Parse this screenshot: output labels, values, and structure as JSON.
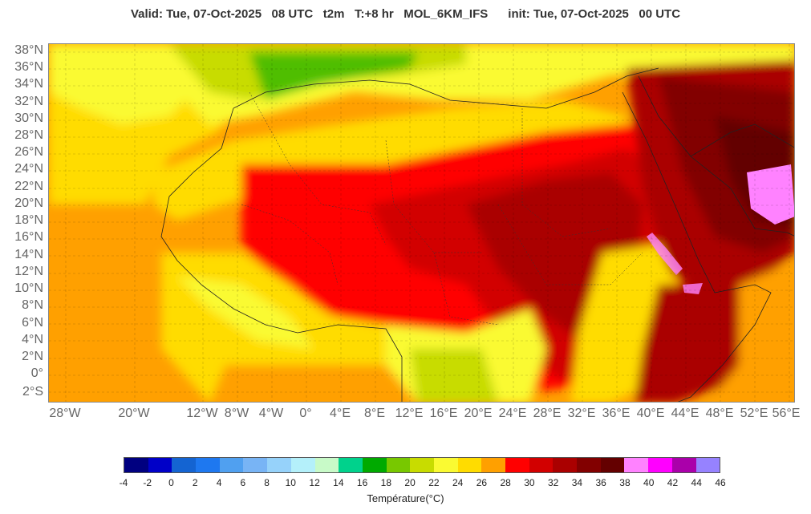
{
  "header": {
    "valid": "Valid: Tue, 07-Oct-2025   08 UTC",
    "field": "t2m",
    "step": "T:+8 hr",
    "model": "MOL_6KM_IFS",
    "init": "init: Tue, 07-Oct-2025   00 UTC"
  },
  "map": {
    "lat_labels": [
      "38°N",
      "36°N",
      "34°N",
      "32°N",
      "30°N",
      "28°N",
      "26°N",
      "24°N",
      "22°N",
      "20°N",
      "18°N",
      "16°N",
      "14°N",
      "12°N",
      "10°N",
      "8°N",
      "6°N",
      "4°N",
      "2°N",
      "0°",
      "2°S"
    ],
    "lon_labels": [
      "28°W",
      "20°W",
      "12°W",
      "8°W",
      "4°W",
      "0°",
      "4°E",
      "8°E",
      "12°E",
      "16°E",
      "20°E",
      "24°E",
      "28°E",
      "32°E",
      "36°E",
      "40°E",
      "44°E",
      "48°E",
      "52°E",
      "56°E"
    ]
  },
  "colorbar": {
    "colors": [
      "#000080",
      "#0000c8",
      "#1464d2",
      "#1e78f0",
      "#50a0f0",
      "#78b4f5",
      "#96d2fa",
      "#b4f0fa",
      "#c8fac8",
      "#00d28c",
      "#00aa00",
      "#78c800",
      "#c8dc00",
      "#fafa32",
      "#ffdc00",
      "#ffa000",
      "#ff0000",
      "#d20000",
      "#aa0000",
      "#820000",
      "#640000",
      "#ff82ff",
      "#ff00ff",
      "#aa00aa",
      "#9682ff"
    ],
    "ticks": [
      "-4",
      "-2",
      "0",
      "2",
      "4",
      "6",
      "8",
      "10",
      "12",
      "14",
      "16",
      "18",
      "20",
      "22",
      "24",
      "26",
      "28",
      "30",
      "32",
      "34",
      "36",
      "38",
      "40",
      "42",
      "44",
      "46"
    ],
    "label": "Température(°C)"
  }
}
